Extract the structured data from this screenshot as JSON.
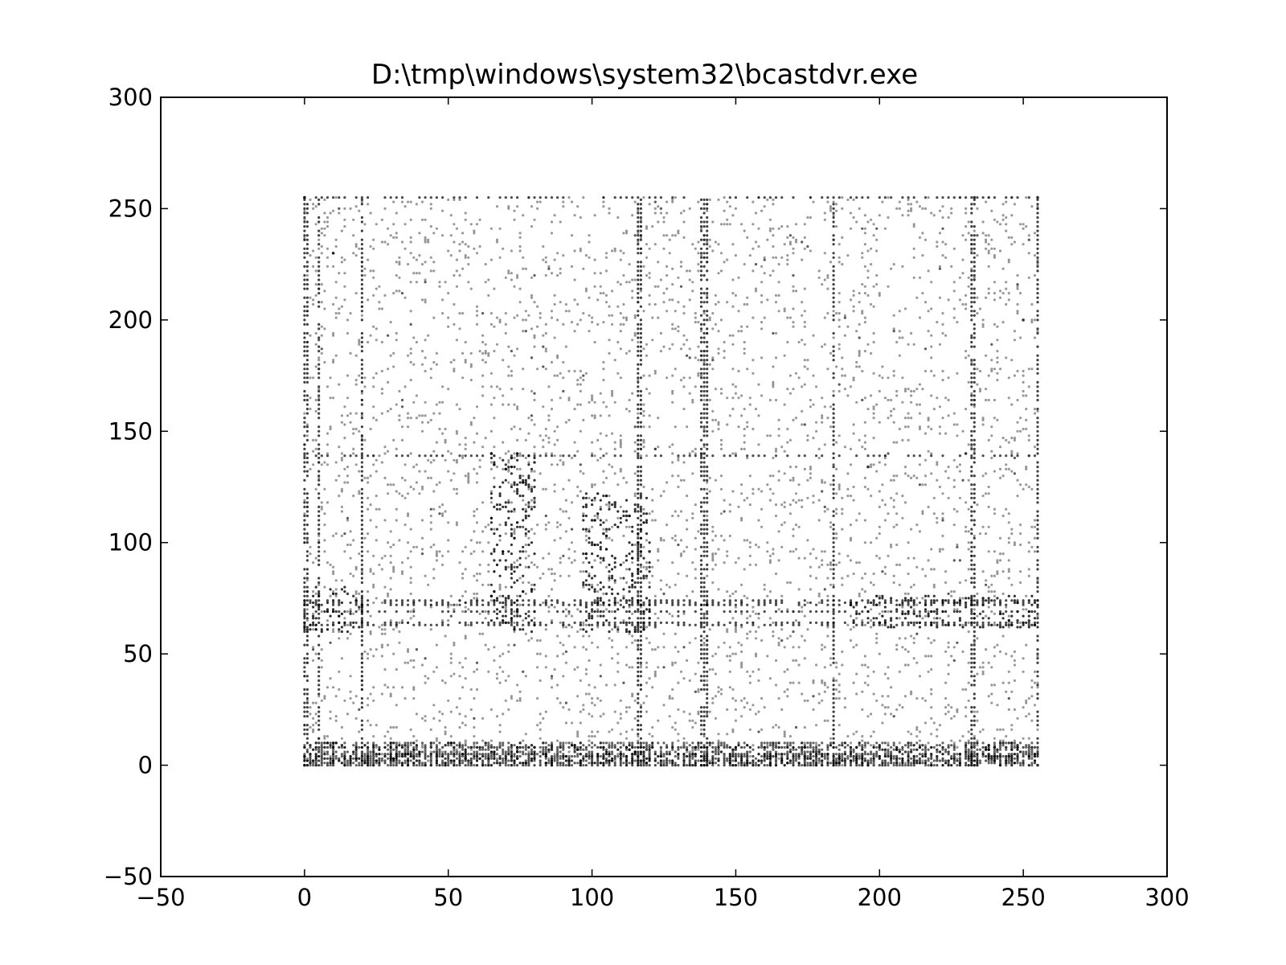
{
  "chart_data": {
    "type": "scatter",
    "title": "D:\\tmp\\windows\\system32\\bcastdvr.exe",
    "xlabel": "",
    "ylabel": "",
    "xlim": [
      -50,
      300
    ],
    "ylim": [
      -50,
      300
    ],
    "x_ticks": [
      -50,
      0,
      50,
      100,
      150,
      200,
      250,
      300
    ],
    "y_ticks": [
      -50,
      0,
      50,
      100,
      150,
      200,
      250,
      300
    ],
    "x_tick_labels": [
      "−50",
      "0",
      "50",
      "100",
      "150",
      "200",
      "250",
      "300"
    ],
    "y_tick_labels": [
      "−50",
      "0",
      "50",
      "100",
      "150",
      "200",
      "250",
      "300"
    ],
    "grid": false,
    "legend": "none",
    "marker_color": "#000000",
    "data_domain": {
      "x": [
        0,
        255
      ],
      "y": [
        0,
        255
      ]
    },
    "dense_columns": [
      0,
      1,
      5,
      20,
      116,
      117,
      138,
      139,
      140,
      184,
      232,
      233,
      255
    ],
    "dense_rows": [
      0,
      1,
      2,
      3,
      4,
      5,
      8,
      63,
      64,
      69,
      72,
      73,
      74,
      139,
      255
    ],
    "dense_clusters": [
      {
        "x": [
          65,
          80
        ],
        "y": [
          60,
          140
        ]
      },
      {
        "x": [
          97,
          120
        ],
        "y": [
          60,
          122
        ]
      },
      {
        "x": [
          190,
          255
        ],
        "y": [
          62,
          76
        ]
      },
      {
        "x": [
          0,
          20
        ],
        "y": [
          60,
          80
        ]
      }
    ],
    "series": [
      {
        "points": [
          [
            0,
            0
          ],
          [
            0,
            255
          ],
          [
            255,
            0
          ],
          [
            255,
            255
          ],
          [
            5,
            72
          ],
          [
            20,
            72
          ],
          [
            65,
            140
          ],
          [
            72,
            138
          ],
          [
            80,
            136
          ],
          [
            97,
            120
          ],
          [
            100,
            110
          ],
          [
            104,
            104
          ],
          [
            108,
            118
          ],
          [
            112,
            112
          ],
          [
            116,
            100
          ],
          [
            117,
            72
          ],
          [
            120,
            96
          ],
          [
            138,
            64
          ],
          [
            139,
            140
          ],
          [
            140,
            72
          ],
          [
            184,
            72
          ],
          [
            190,
            72
          ],
          [
            200,
            64
          ],
          [
            210,
            74
          ],
          [
            232,
            72
          ],
          [
            233,
            255
          ],
          [
            230,
            140
          ],
          [
            196,
            134
          ],
          [
            250,
            200
          ],
          [
            10,
            230
          ]
        ]
      }
    ]
  }
}
